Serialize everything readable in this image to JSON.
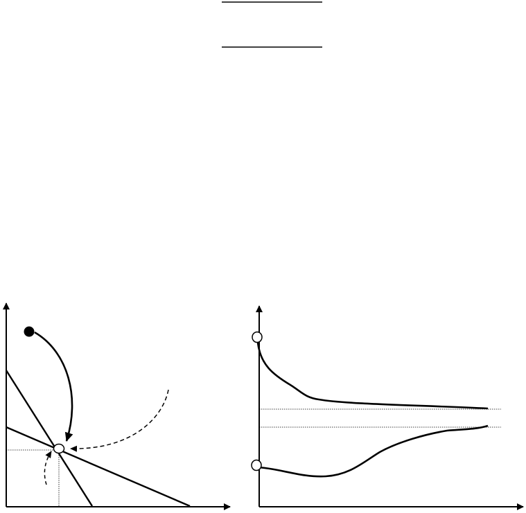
{
  "figure": {
    "header_rules": 2,
    "left_panel": {
      "lines": 2,
      "start_marker": "filled-dot",
      "equilibrium_marker": "open-circle",
      "paths": [
        "solid-arrow-from-start",
        "dashed-arrow-from-right",
        "dashed-arrow-from-below"
      ]
    },
    "right_panel": {
      "curves": [
        "decreasing-to-upper-level",
        "increasing-to-lower-level"
      ],
      "reference_lines": 2,
      "start_markers": 2
    }
  },
  "colors": {
    "stroke": "#000000",
    "background": "#ffffff"
  }
}
